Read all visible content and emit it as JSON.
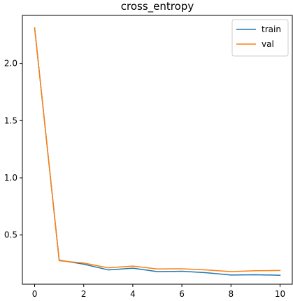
{
  "chart_data": {
    "type": "line",
    "title": "cross_entropy",
    "xlabel": "",
    "ylabel": "",
    "x": [
      0,
      1,
      2,
      3,
      4,
      5,
      6,
      7,
      8,
      9,
      10
    ],
    "xlim": [
      -0.5,
      10.5
    ],
    "ylim": [
      0.07,
      2.42
    ],
    "xticks": [
      "0",
      "2",
      "4",
      "6",
      "8",
      "10"
    ],
    "yticks": [
      "0.5",
      "1.0",
      "1.5",
      "2.0"
    ],
    "legend_position": "top-right",
    "grid": false,
    "series": [
      {
        "name": "train",
        "color": "#1f77b4",
        "values": [
          2.31,
          0.28,
          0.245,
          0.195,
          0.21,
          0.18,
          0.183,
          0.17,
          0.15,
          0.153,
          0.148
        ]
      },
      {
        "name": "val",
        "color": "#ff7f0e",
        "values": [
          2.31,
          0.275,
          0.255,
          0.213,
          0.228,
          0.203,
          0.205,
          0.195,
          0.18,
          0.188,
          0.19
        ]
      }
    ]
  }
}
